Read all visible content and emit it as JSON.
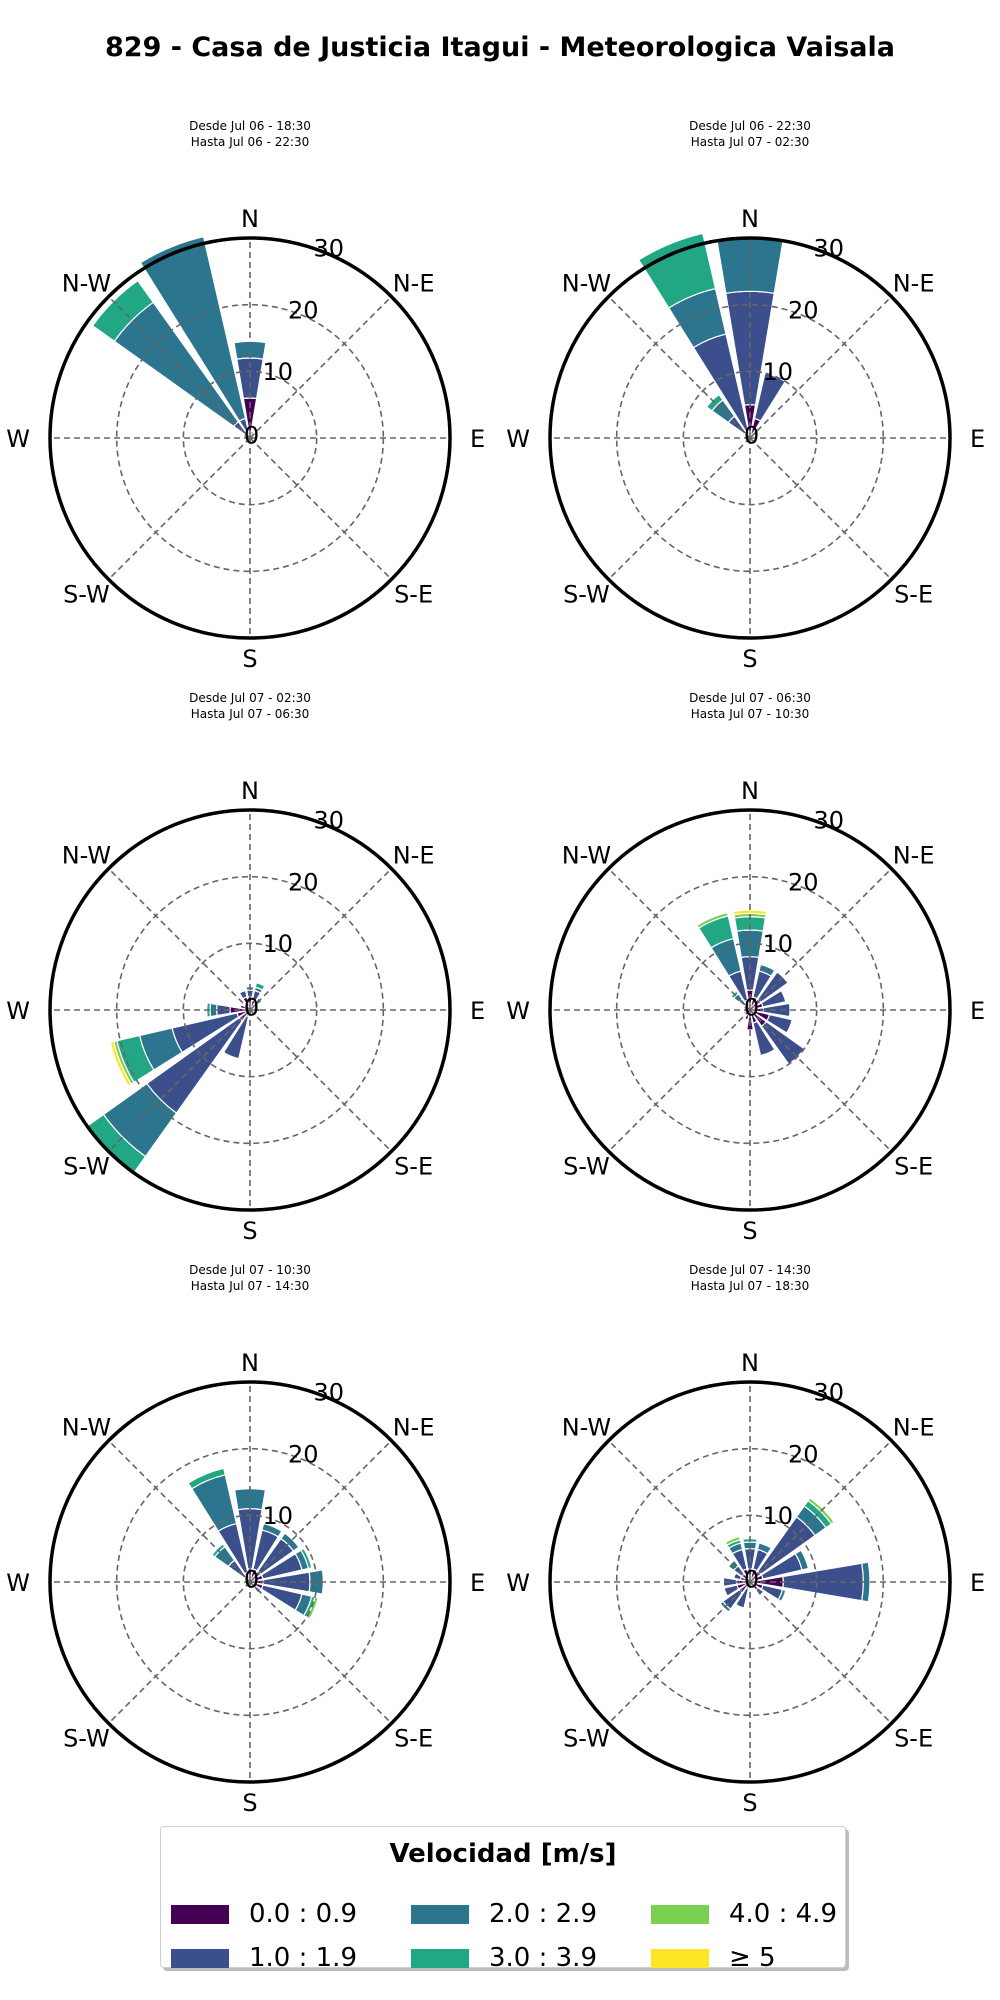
{
  "title": "829 - Casa de Justicia Itagui - Meteorologica Vaisala",
  "colors": {
    "grid": "#666666",
    "bin_colors": [
      "#440154",
      "#3b4f8d",
      "#2b758e",
      "#22a784",
      "#7ad151",
      "#fde725"
    ]
  },
  "chart_data": [
    {
      "type": "windrose",
      "subtitle": [
        "Desde Jul 06 - 18:30",
        "Hasta Jul 06 - 22:30"
      ],
      "direction_labels": [
        "N",
        "N-E",
        "E",
        "S-E",
        "S",
        "S-W",
        "W",
        "N-W"
      ],
      "radial_ticks": [
        "0",
        "10",
        "20",
        "30"
      ],
      "rmax": 30,
      "petals": [
        {
          "dir": 0,
          "stacks": [
            6,
            12,
            14.5
          ]
        },
        {
          "dir": 337.5,
          "stacks": [
            0.5,
            3,
            31
          ]
        },
        {
          "dir": 315,
          "stacks": [
            0.5,
            3,
            25,
            29
          ]
        },
        {
          "dir": 22.5,
          "stacks": [
            1
          ]
        },
        {
          "dir": 45,
          "stacks": [
            1
          ]
        },
        {
          "dir": 292.5,
          "stacks": [
            0.5,
            1
          ]
        }
      ]
    },
    {
      "type": "windrose",
      "subtitle": [
        "Desde Jul 06 - 22:30",
        "Hasta Jul 07 - 02:30"
      ],
      "direction_labels": [
        "N",
        "N-E",
        "E",
        "S-E",
        "S",
        "S-W",
        "W",
        "N-W"
      ],
      "radial_ticks": [
        "0",
        "10",
        "20",
        "30"
      ],
      "rmax": 30,
      "petals": [
        {
          "dir": 0,
          "stacks": [
            5,
            22,
            30
          ]
        },
        {
          "dir": 337.5,
          "stacks": [
            1,
            16,
            23,
            31.5
          ]
        },
        {
          "dir": 315,
          "stacks": [
            1,
            4,
            7,
            8
          ]
        },
        {
          "dir": 22.5,
          "stacks": [
            3,
            10
          ]
        },
        {
          "dir": 45,
          "stacks": [
            1.5
          ]
        },
        {
          "dir": 90,
          "stacks": [
            1
          ]
        },
        {
          "dir": 270,
          "stacks": [
            0.5
          ]
        }
      ]
    },
    {
      "type": "windrose",
      "subtitle": [
        "Desde Jul 07 - 02:30",
        "Hasta Jul 07 - 06:30"
      ],
      "direction_labels": [
        "N",
        "N-E",
        "E",
        "S-E",
        "S",
        "S-W",
        "W",
        "N-W"
      ],
      "radial_ticks": [
        "0",
        "10",
        "20",
        "30"
      ],
      "rmax": 30,
      "petals": [
        {
          "dir": 225,
          "stacks": [
            2,
            19,
            27,
            30
          ]
        },
        {
          "dir": 247.5,
          "stacks": [
            2,
            12,
            17,
            20.5,
            21,
            21.5
          ]
        },
        {
          "dir": 270,
          "stacks": [
            3,
            5,
            6,
            6.5
          ]
        },
        {
          "dir": 202.5,
          "stacks": [
            1,
            7.5
          ]
        },
        {
          "dir": 292.5,
          "stacks": [
            1.5
          ]
        },
        {
          "dir": 0,
          "stacks": [
            2,
            3,
            3.5
          ]
        },
        {
          "dir": 22.5,
          "stacks": [
            1.5,
            3,
            3.5,
            4.2
          ]
        },
        {
          "dir": 45,
          "stacks": [
            1.2,
            2.2
          ]
        },
        {
          "dir": 67.5,
          "stacks": [
            1
          ]
        },
        {
          "dir": 90,
          "stacks": [
            1.5
          ]
        },
        {
          "dir": 112.5,
          "stacks": [
            1
          ]
        },
        {
          "dir": 135,
          "stacks": [
            0.8
          ]
        },
        {
          "dir": 157.5,
          "stacks": [
            1
          ]
        },
        {
          "dir": 180,
          "stacks": [
            1
          ]
        },
        {
          "dir": 315,
          "stacks": [
            1
          ]
        },
        {
          "dir": 337.5,
          "stacks": [
            2,
            3
          ]
        }
      ]
    },
    {
      "type": "windrose",
      "subtitle": [
        "Desde Jul 07 - 06:30",
        "Hasta Jul 07 - 10:30"
      ],
      "direction_labels": [
        "N",
        "N-E",
        "E",
        "S-E",
        "S",
        "S-W",
        "W",
        "N-W"
      ],
      "radial_ticks": [
        "0",
        "10",
        "20",
        "30"
      ],
      "rmax": 30,
      "petals": [
        {
          "dir": 0,
          "stacks": [
            3,
            8,
            12,
            14,
            14.5,
            15
          ]
        },
        {
          "dir": 337.5,
          "stacks": [
            1.5,
            6,
            11,
            14.5,
            15
          ]
        },
        {
          "dir": 315,
          "stacks": [
            1,
            2,
            3,
            3.5
          ]
        },
        {
          "dir": 292.5,
          "stacks": [
            1
          ]
        },
        {
          "dir": 22.5,
          "stacks": [
            2,
            6,
            7
          ]
        },
        {
          "dir": 45,
          "stacks": [
            2,
            7
          ]
        },
        {
          "dir": 67.5,
          "stacks": [
            2,
            5.5
          ]
        },
        {
          "dir": 90,
          "stacks": [
            2,
            6
          ]
        },
        {
          "dir": 112.5,
          "stacks": [
            3,
            6.5
          ]
        },
        {
          "dir": 135,
          "stacks": [
            3,
            10
          ]
        },
        {
          "dir": 157.5,
          "stacks": [
            2,
            7
          ]
        },
        {
          "dir": 180,
          "stacks": [
            3
          ]
        },
        {
          "dir": 202.5,
          "stacks": [
            1.5
          ]
        },
        {
          "dir": 225,
          "stacks": [
            1
          ]
        },
        {
          "dir": 247.5,
          "stacks": [
            1
          ]
        },
        {
          "dir": 270,
          "stacks": [
            1
          ]
        }
      ]
    },
    {
      "type": "windrose",
      "subtitle": [
        "Desde Jul 07 - 10:30",
        "Hasta Jul 07 - 14:30"
      ],
      "direction_labels": [
        "N",
        "N-E",
        "E",
        "S-E",
        "S",
        "S-W",
        "W",
        "N-W"
      ],
      "radial_ticks": [
        "0",
        "10",
        "20",
        "30"
      ],
      "rmax": 30,
      "petals": [
        {
          "dir": 0,
          "stacks": [
            2,
            11,
            14
          ]
        },
        {
          "dir": 337.5,
          "stacks": [
            1.5,
            9,
            16.5,
            17.5
          ]
        },
        {
          "dir": 315,
          "stacks": [
            1,
            4,
            6.5,
            7
          ]
        },
        {
          "dir": 22.5,
          "stacks": [
            2,
            8,
            9
          ]
        },
        {
          "dir": 45,
          "stacks": [
            2,
            8,
            9
          ]
        },
        {
          "dir": 67.5,
          "stacks": [
            2,
            8,
            9,
            9.5
          ]
        },
        {
          "dir": 90,
          "stacks": [
            2,
            9,
            11
          ]
        },
        {
          "dir": 112.5,
          "stacks": [
            2,
            8,
            9.5,
            10,
            10.5
          ]
        },
        {
          "dir": 135,
          "stacks": [
            1,
            2
          ]
        },
        {
          "dir": 157.5,
          "stacks": [
            1
          ]
        },
        {
          "dir": 180,
          "stacks": [
            1
          ]
        },
        {
          "dir": 270,
          "stacks": [
            0.5
          ]
        }
      ]
    },
    {
      "type": "windrose",
      "subtitle": [
        "Desde Jul 07 - 14:30",
        "Hasta Jul 07 - 18:30"
      ],
      "direction_labels": [
        "N",
        "N-E",
        "E",
        "S-E",
        "S",
        "S-W",
        "W",
        "N-W"
      ],
      "radial_ticks": [
        "0",
        "10",
        "20",
        "30"
      ],
      "rmax": 30,
      "petals": [
        {
          "dir": 0,
          "stacks": [
            2,
            5,
            6,
            6.5
          ]
        },
        {
          "dir": 22.5,
          "stacks": [
            2,
            5,
            6
          ]
        },
        {
          "dir": 45,
          "stacks": [
            2,
            12,
            14,
            15,
            15.5
          ]
        },
        {
          "dir": 67.5,
          "stacks": [
            2,
            8,
            9
          ]
        },
        {
          "dir": 90,
          "stacks": [
            5,
            17,
            18
          ]
        },
        {
          "dir": 112.5,
          "stacks": [
            2,
            5,
            5.5
          ]
        },
        {
          "dir": 135,
          "stacks": [
            1.5,
            2.5
          ]
        },
        {
          "dir": 157.5,
          "stacks": [
            1
          ]
        },
        {
          "dir": 180,
          "stacks": [
            1
          ]
        },
        {
          "dir": 202.5,
          "stacks": [
            1,
            4
          ]
        },
        {
          "dir": 225,
          "stacks": [
            2,
            5,
            5.5
          ]
        },
        {
          "dir": 247.5,
          "stacks": [
            2,
            4
          ]
        },
        {
          "dir": 270,
          "stacks": [
            2,
            4
          ]
        },
        {
          "dir": 292.5,
          "stacks": [
            1.5,
            2.5
          ]
        },
        {
          "dir": 315,
          "stacks": [
            1.5,
            3,
            4
          ]
        },
        {
          "dir": 337.5,
          "stacks": [
            2,
            5,
            6,
            6.5,
            7
          ]
        }
      ]
    }
  ],
  "legend": {
    "title": "Velocidad [m/s]",
    "items": [
      {
        "label": "0.0 : 0.9",
        "color": "#440154"
      },
      {
        "label": "1.0 : 1.9",
        "color": "#3b4f8d"
      },
      {
        "label": "2.0 : 2.9",
        "color": "#2b758e"
      },
      {
        "label": "3.0 : 3.9",
        "color": "#22a784"
      },
      {
        "label": "4.0 : 4.9",
        "color": "#7ad151"
      },
      {
        "label": "≥  5",
        "color": "#fde725"
      }
    ]
  }
}
